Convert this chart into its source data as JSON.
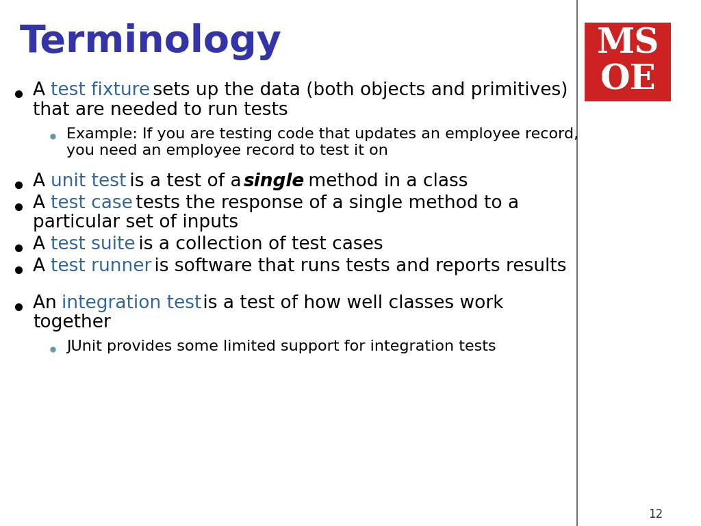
{
  "title": "Terminology",
  "title_color": "#3333aa",
  "title_fontsize": 40,
  "background_color": "#ffffff",
  "text_color": "#000000",
  "highlight_color": "#336699",
  "bullet_color": "#000000",
  "sub_bullet_color": "#6699aa",
  "logo_bg_color": "#cc2222",
  "logo_text": "MS\nOE",
  "page_number": "12",
  "line_color": "#555555",
  "bullet_items": [
    {
      "type": "bullet",
      "parts": [
        {
          "text": "A ",
          "style": "normal",
          "color": "#000000"
        },
        {
          "text": "test fixture",
          "style": "normal",
          "color": "#336699"
        },
        {
          "text": " sets up the data (both objects and primitives)\nthat are needed to run tests",
          "style": "normal",
          "color": "#000000"
        }
      ]
    },
    {
      "type": "sub_bullet",
      "parts": [
        {
          "text": "Example: If you are testing code that updates an employee record,\nyou need an employee record to test it on",
          "style": "normal",
          "color": "#000000"
        }
      ]
    },
    {
      "type": "blank"
    },
    {
      "type": "bullet",
      "parts": [
        {
          "text": "A ",
          "style": "normal",
          "color": "#000000"
        },
        {
          "text": "unit test",
          "style": "normal",
          "color": "#336699"
        },
        {
          "text": " is a test of a ",
          "style": "normal",
          "color": "#000000"
        },
        {
          "text": "single",
          "style": "bold_italic",
          "color": "#000000"
        },
        {
          "text": " method in a class",
          "style": "normal",
          "color": "#000000"
        }
      ]
    },
    {
      "type": "bullet",
      "parts": [
        {
          "text": "A ",
          "style": "normal",
          "color": "#000000"
        },
        {
          "text": "test case",
          "style": "normal",
          "color": "#336699"
        },
        {
          "text": " tests the response of a single method to a\nparticular set of inputs",
          "style": "normal",
          "color": "#000000"
        }
      ]
    },
    {
      "type": "bullet",
      "parts": [
        {
          "text": "A ",
          "style": "normal",
          "color": "#000000"
        },
        {
          "text": "test suite",
          "style": "normal",
          "color": "#336699"
        },
        {
          "text": " is a collection of test cases",
          "style": "normal",
          "color": "#000000"
        }
      ]
    },
    {
      "type": "bullet",
      "parts": [
        {
          "text": "A ",
          "style": "normal",
          "color": "#000000"
        },
        {
          "text": "test runner",
          "style": "normal",
          "color": "#336699"
        },
        {
          "text": " is software that runs tests and reports results",
          "style": "normal",
          "color": "#000000"
        }
      ]
    },
    {
      "type": "blank"
    },
    {
      "type": "bullet",
      "parts": [
        {
          "text": "An ",
          "style": "normal",
          "color": "#000000"
        },
        {
          "text": "integration test",
          "style": "normal",
          "color": "#336699"
        },
        {
          "text": " is a test of how well classes work\ntogether",
          "style": "normal",
          "color": "#000000"
        }
      ]
    },
    {
      "type": "sub_bullet",
      "parts": [
        {
          "text": "JUnit provides some limited support for integration tests",
          "style": "normal",
          "color": "#000000"
        }
      ]
    }
  ]
}
